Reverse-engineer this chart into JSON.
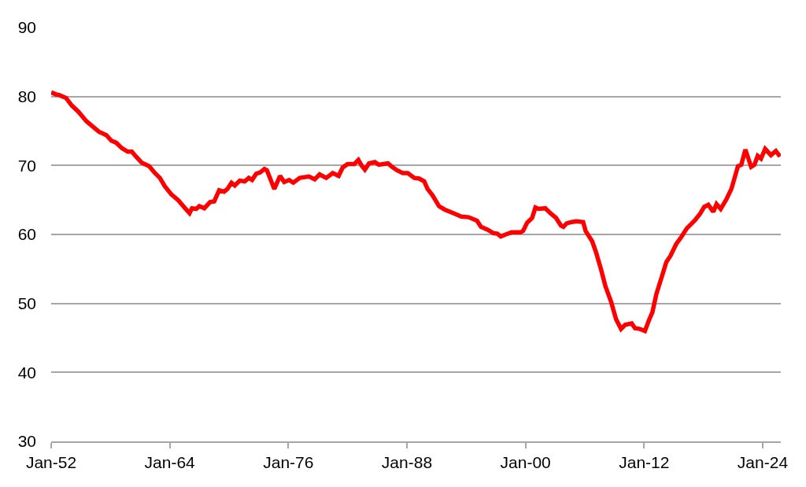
{
  "chart_data": {
    "type": "line",
    "x": [
      "1952-01",
      "1952-07",
      "1952-11",
      "1953-07",
      "1954-02",
      "1954-10",
      "1955-08",
      "1956-03",
      "1956-11",
      "1957-08",
      "1958-02",
      "1958-08",
      "1959-03",
      "1959-10",
      "1960-03",
      "1960-08",
      "1961-03",
      "1961-12",
      "1962-07",
      "1963-01",
      "1963-07",
      "1964-03",
      "1964-11",
      "1965-07",
      "1966-01",
      "1966-04",
      "1966-09",
      "1967-01",
      "1967-07",
      "1968-02",
      "1968-07",
      "1969-01",
      "1969-07",
      "1969-11",
      "1970-04",
      "1970-08",
      "1971-02",
      "1971-08",
      "1972-01",
      "1972-05",
      "1972-10",
      "1973-03",
      "1973-08",
      "1973-11",
      "1974-08",
      "1975-03",
      "1975-08",
      "1976-02",
      "1976-07",
      "1977-03",
      "1978-02",
      "1978-09",
      "1979-03",
      "1979-11",
      "1980-07",
      "1981-02",
      "1981-07",
      "1982-01",
      "1982-09",
      "1983-02",
      "1983-06",
      "1983-10",
      "1984-03",
      "1984-10",
      "1985-03",
      "1985-08",
      "1986-02",
      "1986-07",
      "1987-01",
      "1987-08",
      "1988-02",
      "1988-10",
      "1989-04",
      "1989-10",
      "1990-02",
      "1990-08",
      "1991-04",
      "1991-11",
      "1992-09",
      "1993-07",
      "1994-04",
      "1995-02",
      "1995-07",
      "1996-03",
      "1996-10",
      "1997-03",
      "1997-07",
      "1998-01",
      "1998-08",
      "1999-07",
      "1999-10",
      "2000-03",
      "2000-09",
      "2001-01",
      "2001-05",
      "2002-01",
      "2002-08",
      "2003-02",
      "2003-08",
      "2003-11",
      "2004-03",
      "2004-09",
      "2005-03",
      "2005-11",
      "2006-02",
      "2006-10",
      "2007-03",
      "2007-09",
      "2008-02",
      "2008-09",
      "2009-03",
      "2009-09",
      "2010-02",
      "2010-10",
      "2011-02",
      "2011-08",
      "2012-02",
      "2012-07",
      "2012-11",
      "2013-04",
      "2013-09",
      "2014-04",
      "2014-09",
      "2015-04",
      "2015-10",
      "2016-05",
      "2017-03",
      "2017-09",
      "2018-02",
      "2018-07",
      "2019-01",
      "2019-05",
      "2019-10",
      "2020-05",
      "2020-11",
      "2021-07",
      "2021-11",
      "2022-04",
      "2022-11",
      "2023-03",
      "2023-07",
      "2023-11",
      "2024-04",
      "2024-11",
      "2025-05",
      "2025-10"
    ],
    "series": [
      {
        "color": "#ff0000",
        "values": [
          80.6,
          80.3,
          80.2,
          79.8,
          78.7,
          77.8,
          76.4,
          75.7,
          74.9,
          74.4,
          73.6,
          73.3,
          72.5,
          72.0,
          72.0,
          71.3,
          70.4,
          69.9,
          68.9,
          68.2,
          67.0,
          65.8,
          65.0,
          63.9,
          63.1,
          63.8,
          63.7,
          64.1,
          63.8,
          64.7,
          64.8,
          66.4,
          66.2,
          66.6,
          67.5,
          67.1,
          67.8,
          67.7,
          68.2,
          67.9,
          68.8,
          69.0,
          69.5,
          69.3,
          66.6,
          68.5,
          67.6,
          67.9,
          67.5,
          68.2,
          68.4,
          68.0,
          68.7,
          68.2,
          68.9,
          68.5,
          69.7,
          70.2,
          70.2,
          70.8,
          70.0,
          69.4,
          70.3,
          70.5,
          70.1,
          70.2,
          70.3,
          69.8,
          69.3,
          68.9,
          68.9,
          68.2,
          68.1,
          67.7,
          66.6,
          65.7,
          64.1,
          63.6,
          63.1,
          62.6,
          62.5,
          62.0,
          61.1,
          60.7,
          60.2,
          60.1,
          59.7,
          60.0,
          60.3,
          60.3,
          60.5,
          61.7,
          62.4,
          63.9,
          63.7,
          63.8,
          63.0,
          62.4,
          61.3,
          61.1,
          61.6,
          61.8,
          61.9,
          61.8,
          60.5,
          59.0,
          57.3,
          54.8,
          52.5,
          50.2,
          47.7,
          46.3,
          46.9,
          47.1,
          46.4,
          46.3,
          46.0,
          47.6,
          48.7,
          51.4,
          53.3,
          56.0,
          56.9,
          58.6,
          59.6,
          60.9,
          62.1,
          63.0,
          64.0,
          64.3,
          63.3,
          64.4,
          63.7,
          65.1,
          66.6,
          69.9,
          70.1,
          72.3,
          69.8,
          70.1,
          71.4,
          71.0,
          72.4,
          71.5,
          72.1,
          71.3
        ]
      }
    ],
    "xlim": [
      "1952-01",
      "2025-11"
    ],
    "xticks": [
      {
        "value": "1952-01",
        "label": "Jan-52"
      },
      {
        "value": "1964-01",
        "label": "Jan-64"
      },
      {
        "value": "1976-01",
        "label": "Jan-76"
      },
      {
        "value": "1988-01",
        "label": "Jan-88"
      },
      {
        "value": "2000-01",
        "label": "Jan-00"
      },
      {
        "value": "2012-01",
        "label": "Jan-12"
      },
      {
        "value": "2024-01",
        "label": "Jan-24"
      }
    ],
    "ylim": [
      30,
      90
    ],
    "yticks": [
      30,
      40,
      50,
      60,
      70,
      80,
      90
    ],
    "grid": "y"
  }
}
